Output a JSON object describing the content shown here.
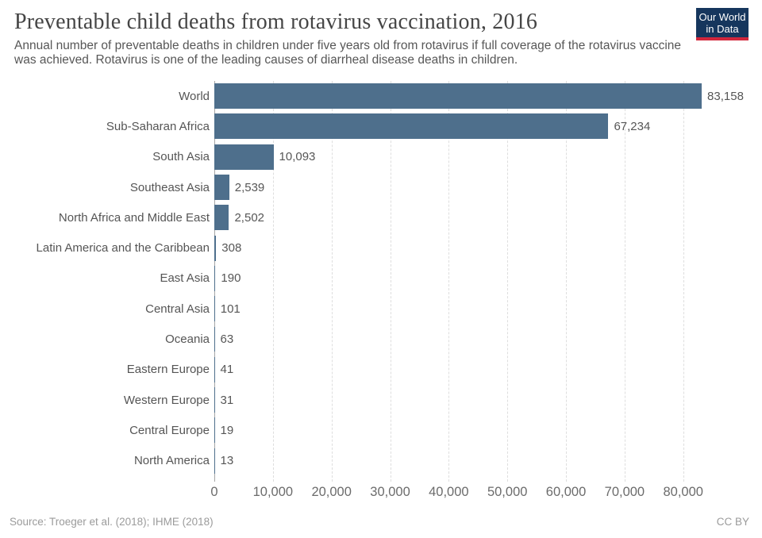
{
  "header": {
    "title": "Preventable child deaths from rotavirus vaccination, 2016",
    "subtitle": "Annual number of preventable deaths in children under five years old from rotavirus if full coverage of the rotavirus vaccine was achieved. Rotavirus is one of the leading causes of diarrheal disease deaths in children.",
    "logo": {
      "line1": "Our World",
      "line2": "in Data"
    }
  },
  "chart_data": {
    "type": "bar",
    "orientation": "horizontal",
    "title": "Preventable child deaths from rotavirus vaccination, 2016",
    "categories": [
      "World",
      "Sub-Saharan Africa",
      "South Asia",
      "Southeast Asia",
      "North Africa and Middle East",
      "Latin America and the Caribbean",
      "East Asia",
      "Central Asia",
      "Oceania",
      "Eastern Europe",
      "Western Europe",
      "Central Europe",
      "North America"
    ],
    "values": [
      83158,
      67234,
      10093,
      2539,
      2502,
      308,
      190,
      101,
      63,
      41,
      31,
      19,
      13
    ],
    "value_labels": [
      "83,158",
      "67,234",
      "10,093",
      "2,539",
      "2,502",
      "308",
      "190",
      "101",
      "63",
      "41",
      "31",
      "19",
      "13"
    ],
    "xlabel": "",
    "ylabel": "",
    "xlim": [
      0,
      90000
    ],
    "x_ticks": [
      0,
      10000,
      20000,
      30000,
      40000,
      50000,
      60000,
      70000,
      80000
    ],
    "x_tick_labels": [
      "0",
      "10,000",
      "20,000",
      "30,000",
      "40,000",
      "50,000",
      "60,000",
      "70,000",
      "80,000"
    ],
    "grid": "vertical dashed",
    "legend": "none",
    "bar_color": "#4e6f8c"
  },
  "colors": {
    "bar": "#4e6f8c",
    "logo_bg": "#16365d",
    "logo_stripe": "#d2273c",
    "title_text": "#454545",
    "axis_text": "#6b6b6b"
  },
  "footer": {
    "source": "Source: Troeger et al. (2018); IHME (2018)",
    "license": "CC BY"
  }
}
